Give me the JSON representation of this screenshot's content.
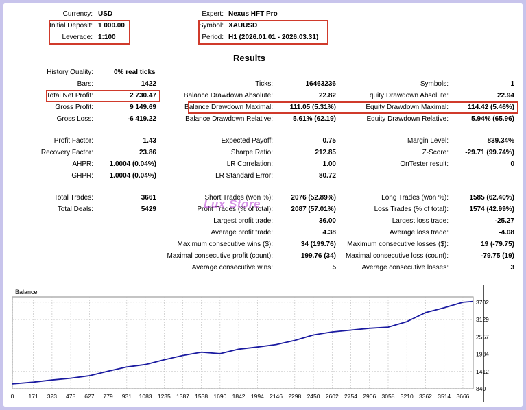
{
  "header": {
    "currency_label": "Currency:",
    "currency_value": "USD",
    "deposit_label": "Initial Deposit:",
    "deposit_value": "1 000.00",
    "leverage_label": "Leverage:",
    "leverage_value": "1:100",
    "expert_label": "Expert:",
    "expert_value": "Nexus HFT Pro",
    "symbol_label": "Symbol:",
    "symbol_value": "XAUUSD",
    "period_label": "Period:",
    "period_value": "H1 (2026.01.01 - 2026.03.31)"
  },
  "results_title": "Results",
  "col1": {
    "history_quality_label": "History Quality:",
    "history_quality_value": "0% real ticks",
    "bars_label": "Bars:",
    "bars_value": "1422",
    "net_profit_label": "Total Net Profit:",
    "net_profit_value": "2 730.47",
    "gross_profit_label": "Gross Profit:",
    "gross_profit_value": "9 149.69",
    "gross_loss_label": "Gross Loss:",
    "gross_loss_value": "-6 419.22",
    "profit_factor_label": "Profit Factor:",
    "profit_factor_value": "1.43",
    "recovery_factor_label": "Recovery Factor:",
    "recovery_factor_value": "23.86",
    "ahpr_label": "AHPR:",
    "ahpr_value": "1.0004 (0.04%)",
    "ghpr_label": "GHPR:",
    "ghpr_value": "1.0004 (0.04%)",
    "total_trades_label": "Total Trades:",
    "total_trades_value": "3661",
    "total_deals_label": "Total Deals:",
    "total_deals_value": "5429"
  },
  "col2": {
    "ticks_label": "Ticks:",
    "ticks_value": "16463236",
    "bal_dd_abs_label": "Balance Drawdown Absolute:",
    "bal_dd_abs_value": "22.82",
    "bal_dd_max_label": "Balance Drawdown Maximal:",
    "bal_dd_max_value": "111.05 (5.31%)",
    "bal_dd_rel_label": "Balance Drawdown Relative:",
    "bal_dd_rel_value": "5.61% (62.19)",
    "exp_payoff_label": "Expected Payoff:",
    "exp_payoff_value": "0.75",
    "sharpe_label": "Sharpe Ratio:",
    "sharpe_value": "212.85",
    "lr_corr_label": "LR Correlation:",
    "lr_corr_value": "1.00",
    "lr_err_label": "LR Standard Error:",
    "lr_err_value": "80.72",
    "short_trades_label": "Short Trades (won %):",
    "short_trades_value": "2076 (52.89%)",
    "profit_trades_label": "Profit Trades (% of total):",
    "profit_trades_value": "2087 (57.01%)",
    "largest_profit_label": "Largest profit trade:",
    "largest_profit_value": "36.00",
    "avg_profit_label": "Average profit trade:",
    "avg_profit_value": "4.38",
    "max_cons_wins_label": "Maximum consecutive wins ($):",
    "max_cons_wins_value": "34 (199.76)",
    "maximal_cons_profit_label": "Maximal consecutive profit (count):",
    "maximal_cons_profit_value": "199.76 (34)",
    "avg_cons_wins_label": "Average consecutive wins:",
    "avg_cons_wins_value": "5"
  },
  "col3": {
    "symbols_label": "Symbols:",
    "symbols_value": "1",
    "eq_dd_abs_label": "Equity Drawdown Absolute:",
    "eq_dd_abs_value": "22.94",
    "eq_dd_max_label": "Equity Drawdown Maximal:",
    "eq_dd_max_value": "114.42 (5.46%)",
    "eq_dd_rel_label": "Equity Drawdown Relative:",
    "eq_dd_rel_value": "5.94% (65.96)",
    "margin_level_label": "Margin Level:",
    "margin_level_value": "839.34%",
    "zscore_label": "Z-Score:",
    "zscore_value": "-29.71 (99.74%)",
    "ontester_label": "OnTester result:",
    "ontester_value": "0",
    "long_trades_label": "Long Trades (won %):",
    "long_trades_value": "1585 (62.40%)",
    "loss_trades_label": "Loss Trades (% of total):",
    "loss_trades_value": "1574 (42.99%)",
    "largest_loss_label": "Largest loss trade:",
    "largest_loss_value": "-25.27",
    "avg_loss_label": "Average loss trade:",
    "avg_loss_value": "-4.08",
    "max_cons_losses_label": "Maximum consecutive losses ($):",
    "max_cons_losses_value": "19 (-79.75)",
    "maximal_cons_loss_label": "Maximal consecutive loss (count):",
    "maximal_cons_loss_value": "-79.75 (19)",
    "avg_cons_losses_label": "Average consecutive losses:",
    "avg_cons_losses_value": "3"
  },
  "watermark_text": "Lux Store",
  "colors": {
    "highlight_border": "#d03a2b",
    "line": "#1a1aa0",
    "page_bg": "#c8c4ec"
  },
  "chart_data": {
    "type": "line",
    "title": "Balance",
    "x_ticks": [
      0,
      171,
      323,
      475,
      627,
      779,
      931,
      1083,
      1235,
      1387,
      1538,
      1690,
      1842,
      1994,
      2146,
      2298,
      2450,
      2602,
      2754,
      2906,
      3058,
      3210,
      3362,
      3514,
      3666
    ],
    "y_ticks": [
      840,
      1412,
      1984,
      2557,
      3129,
      3702
    ],
    "xlim": [
      0,
      3750
    ],
    "ylim": [
      840,
      3880
    ],
    "grid": true,
    "series": [
      {
        "x": [
          0,
          171,
          323,
          475,
          627,
          779,
          931,
          1083,
          1235,
          1387,
          1538,
          1690,
          1842,
          1994,
          2146,
          2298,
          2450,
          2602,
          2754,
          2906,
          3058,
          3210,
          3362,
          3514,
          3666,
          3750
        ],
        "y": [
          1000,
          1060,
          1130,
          1190,
          1270,
          1420,
          1560,
          1640,
          1800,
          1940,
          2050,
          2000,
          2150,
          2220,
          2300,
          2440,
          2620,
          2720,
          2780,
          2840,
          2880,
          3060,
          3360,
          3520,
          3700,
          3730
        ]
      }
    ]
  }
}
